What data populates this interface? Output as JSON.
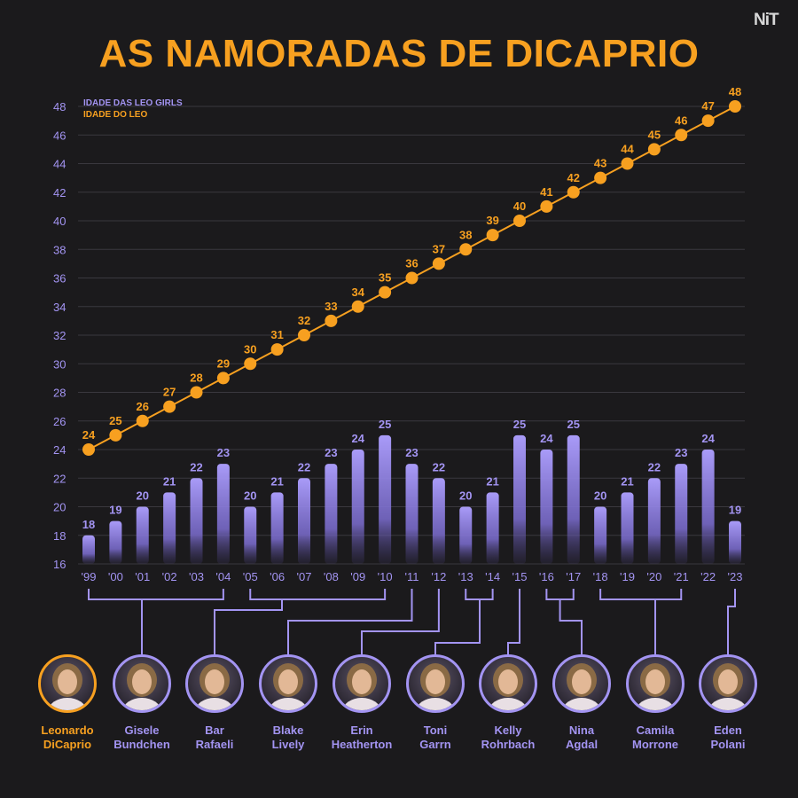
{
  "title": "AS NAMORADAS DE DICAPRIO",
  "logo": "NiT",
  "chart_data": {
    "type": "bar+line",
    "title": "AS NAMORADAS DE DICAPRIO",
    "categories": [
      "'99",
      "'00",
      "'01",
      "'02",
      "'03",
      "'04",
      "'05",
      "'06",
      "'07",
      "'08",
      "'09",
      "'10",
      "'11",
      "'12",
      "'13",
      "'14",
      "'15",
      "'16",
      "'17",
      "'18",
      "'19",
      "'20",
      "'21",
      "'22",
      "'23"
    ],
    "series": [
      {
        "name": "IDADE DAS LEO GIRLS",
        "type": "bar",
        "color": "#a394f2",
        "values": [
          18,
          19,
          20,
          21,
          22,
          23,
          20,
          21,
          22,
          23,
          24,
          25,
          23,
          22,
          20,
          21,
          25,
          24,
          25,
          20,
          21,
          22,
          23,
          24,
          19
        ]
      },
      {
        "name": "IDADE DO LEO",
        "type": "line",
        "color": "#f7a020",
        "values": [
          24,
          25,
          26,
          27,
          28,
          29,
          30,
          31,
          32,
          33,
          34,
          35,
          36,
          37,
          38,
          39,
          40,
          41,
          42,
          43,
          44,
          45,
          46,
          47,
          48
        ]
      }
    ],
    "yticks": [
      16,
      18,
      20,
      22,
      24,
      26,
      28,
      30,
      32,
      34,
      36,
      38,
      40,
      42,
      44,
      46,
      48
    ],
    "ylim": [
      16,
      48.7
    ],
    "grid": true,
    "legend_position": "top-left"
  },
  "groups": [
    {
      "name": "Gisele Bundchen",
      "from": 0,
      "to": 5
    },
    {
      "name": "Bar Rafaeli",
      "from": 6,
      "to": 11
    },
    {
      "name": "Blake Lively",
      "from": 12,
      "to": 12
    },
    {
      "name": "Erin Heatherton",
      "from": 13,
      "to": 13
    },
    {
      "name": "Toni Garrn",
      "from": 14,
      "to": 15
    },
    {
      "name": "Kelly Rohrbach",
      "from": 16,
      "to": 16
    },
    {
      "name": "Nina Agdal",
      "from": 17,
      "to": 18
    },
    {
      "name": "Camila Morrone",
      "from": 19,
      "to": 22
    },
    {
      "name": "Eden Polani",
      "from": 24,
      "to": 24
    }
  ],
  "people": [
    {
      "first": "Leonardo",
      "last": "DiCaprio"
    },
    {
      "first": "Gisele",
      "last": "Bundchen"
    },
    {
      "first": "Bar",
      "last": "Rafaeli"
    },
    {
      "first": "Blake",
      "last": "Lively"
    },
    {
      "first": "Erin",
      "last": "Heatherton"
    },
    {
      "first": "Toni",
      "last": "Garrn"
    },
    {
      "first": "Kelly",
      "last": "Rohrbach"
    },
    {
      "first": "Nina",
      "last": "Agdal"
    },
    {
      "first": "Camila",
      "last": "Morrone"
    },
    {
      "first": "Eden",
      "last": "Polani"
    }
  ]
}
